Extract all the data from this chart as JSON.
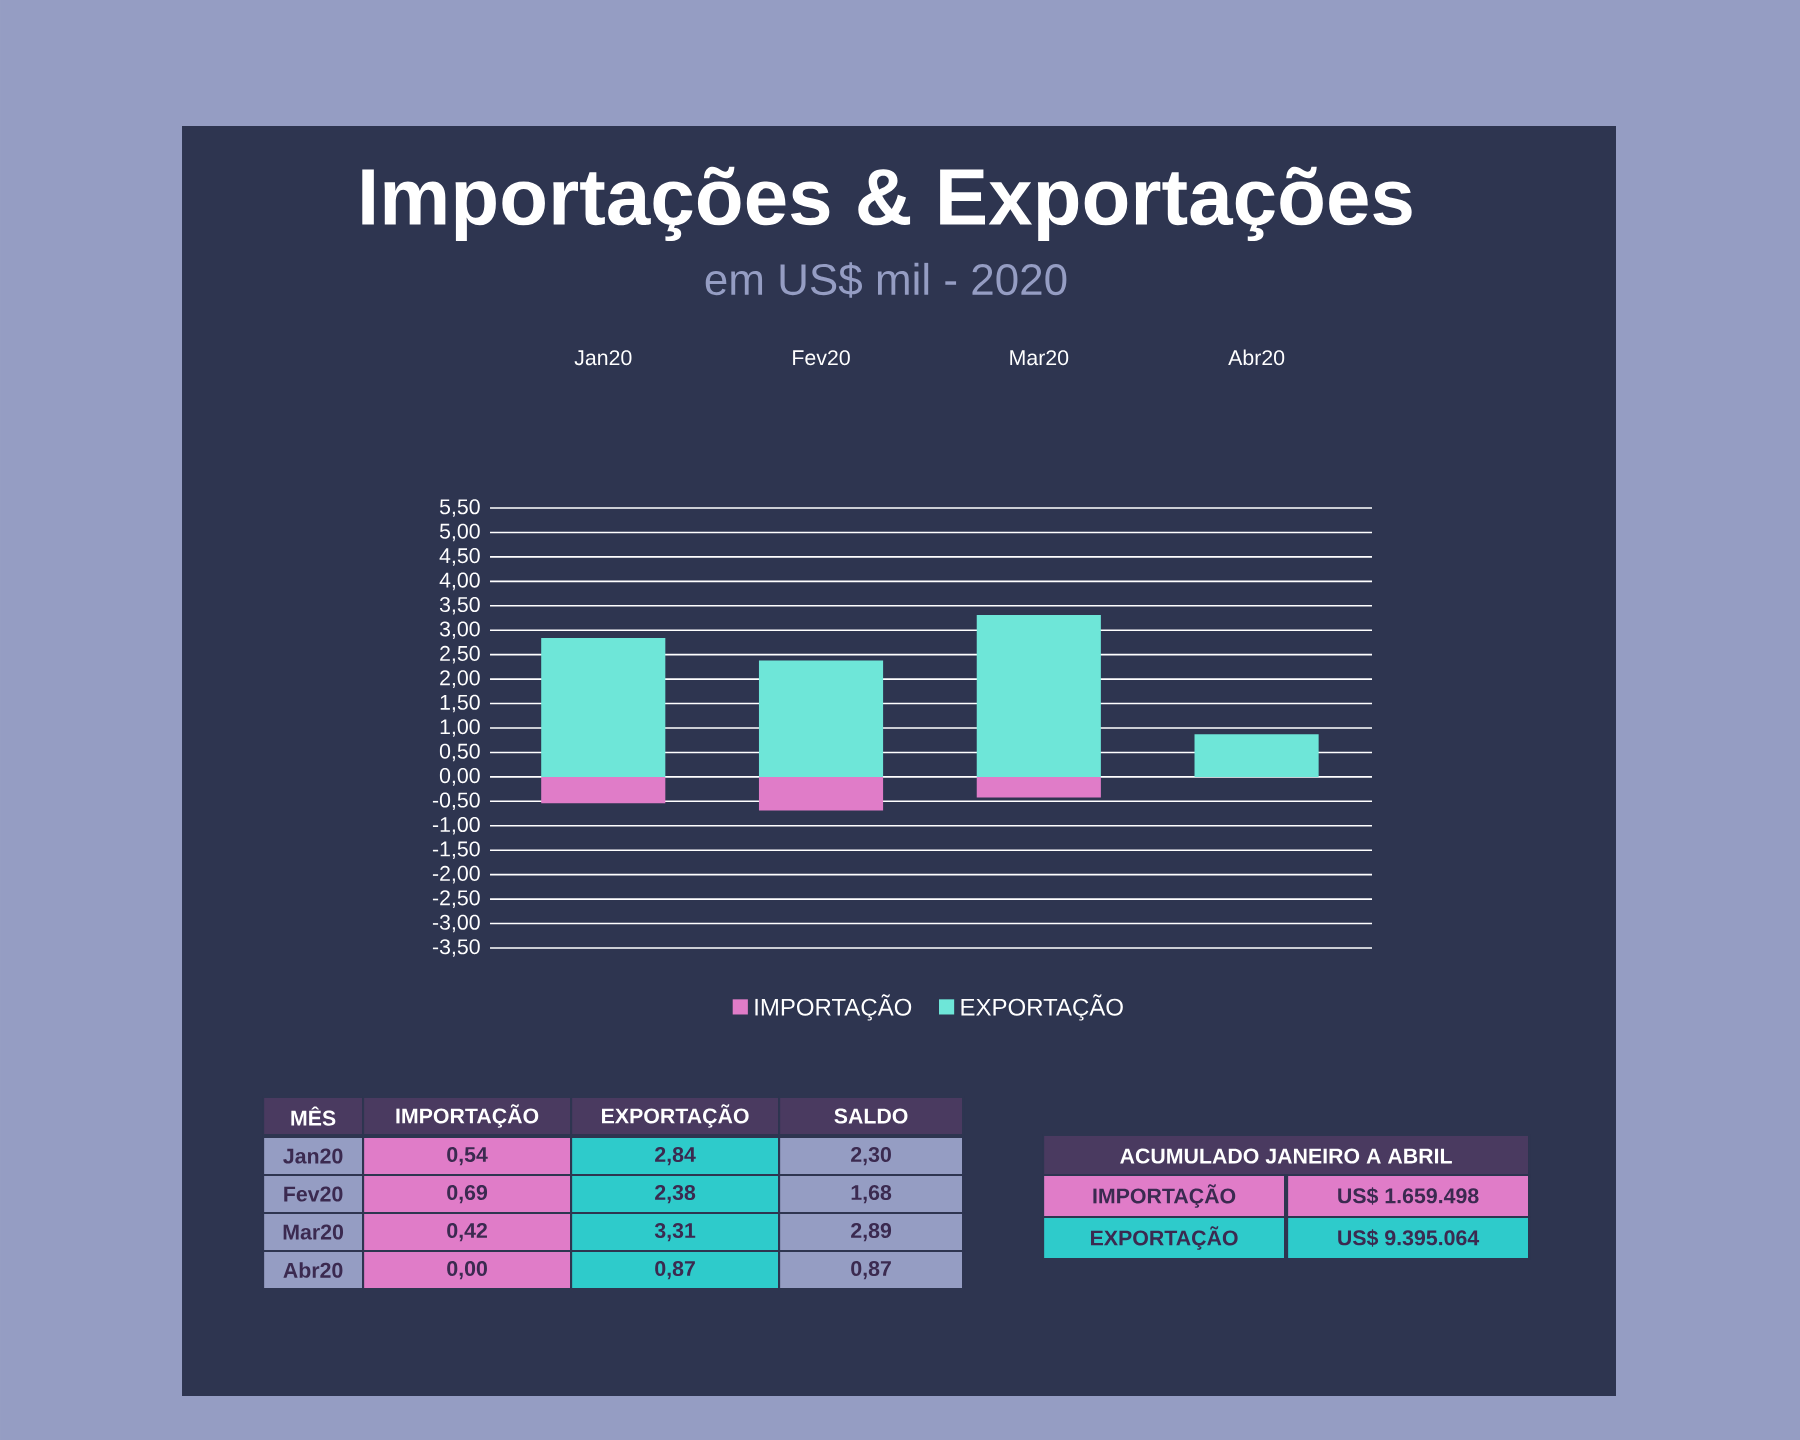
{
  "chart_data": {
    "type": "bar",
    "title": "Importações & Exportações",
    "subtitle": "em US$ mil - 2020",
    "categories": [
      "Jan20",
      "Fev20",
      "Mar20",
      "Abr20"
    ],
    "series": [
      {
        "name": "IMPORTAÇÃO",
        "color": "#e07cc8",
        "values": [
          -0.54,
          -0.69,
          -0.42,
          0.0
        ]
      },
      {
        "name": "EXPORTAÇÃO",
        "color": "#6ee6d8",
        "values": [
          2.84,
          2.38,
          3.31,
          0.87
        ]
      }
    ],
    "stacked": true,
    "ylim": [
      -3.5,
      5.5
    ],
    "yticks": [
      {
        "value": 5.5,
        "label": "5,50"
      },
      {
        "value": 5.0,
        "label": "5,00"
      },
      {
        "value": 4.5,
        "label": "4,50"
      },
      {
        "value": 4.0,
        "label": "4,00"
      },
      {
        "value": 3.5,
        "label": "3,50"
      },
      {
        "value": 3.0,
        "label": "3,00"
      },
      {
        "value": 2.5,
        "label": "2,50"
      },
      {
        "value": 2.0,
        "label": "2,00"
      },
      {
        "value": 1.5,
        "label": "1,50"
      },
      {
        "value": 1.0,
        "label": "1,00"
      },
      {
        "value": 0.5,
        "label": "0,50"
      },
      {
        "value": 0.0,
        "label": "0,00"
      },
      {
        "value": -0.5,
        "label": "-0,50"
      },
      {
        "value": -1.0,
        "label": "-1,00"
      },
      {
        "value": -1.5,
        "label": "-1,50"
      },
      {
        "value": -2.0,
        "label": "-2,00"
      },
      {
        "value": -2.5,
        "label": "-2,50"
      },
      {
        "value": -3.0,
        "label": "-3,00"
      },
      {
        "value": -3.5,
        "label": "-3,50"
      }
    ],
    "grid": "y",
    "legend": "bottom",
    "annotations": [
      "MÊS",
      "SALDO",
      "2,30",
      "1,68",
      "2,89",
      "0,87",
      "ACUMULADO JANEIRO A ABRIL",
      "US$ 1.659.498",
      "US$ 9.395.064",
      "0,54",
      "0,69",
      "0,42",
      "0,00",
      "2,84",
      "2,38",
      "3,31",
      "0,87"
    ]
  }
}
